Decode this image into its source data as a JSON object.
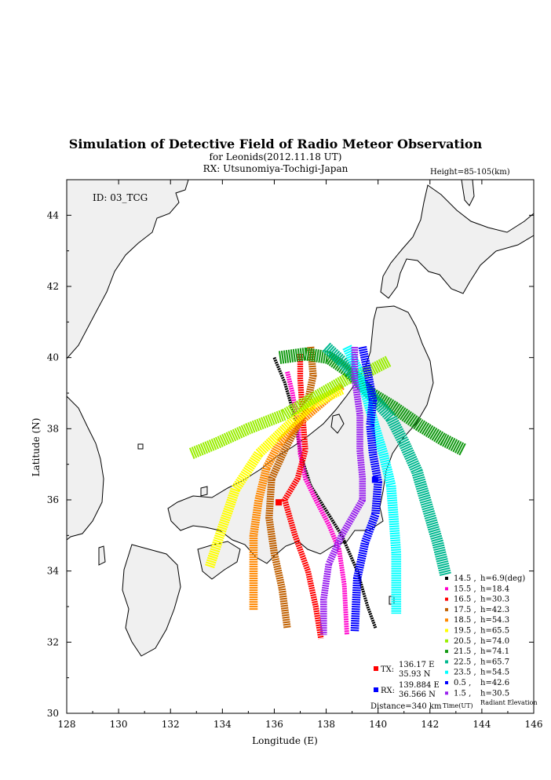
{
  "chart_data": {
    "type": "scatter",
    "title": "Simulation of Detective Field of Radio Meteor Observation",
    "subtitle": "for Leonids(2012.11.18 UT)",
    "rx_line": "RX: Utsunomiya-Tochigi-Japan",
    "height_note": "Height=85-105(km)",
    "id_label": "ID: 03_TCG",
    "xlabel": "Longitude (E)",
    "ylabel": "Latitude (N)",
    "xlim": [
      128,
      146
    ],
    "ylim": [
      30,
      45
    ],
    "xticks": [
      "128",
      "130",
      "132",
      "134",
      "136",
      "138",
      "140",
      "142",
      "144",
      "146"
    ],
    "yticks": [
      "30",
      "32",
      "34",
      "36",
      "38",
      "40",
      "42",
      "44"
    ],
    "legend_header": {
      "time": "Time(UT)",
      "elevation": "Radiant Elevation"
    },
    "series": [
      {
        "time": "14.5",
        "elev": "h=6.9(deg)",
        "color": "#000000",
        "width": 0.12,
        "pts": [
          [
            136.0,
            40.0
          ],
          [
            136.4,
            39.3
          ],
          [
            136.8,
            38.3
          ],
          [
            137.0,
            37.3
          ],
          [
            137.4,
            36.4
          ],
          [
            138.0,
            35.7
          ],
          [
            138.6,
            35.0
          ],
          [
            139.2,
            34.0
          ],
          [
            139.6,
            33.0
          ],
          [
            139.9,
            32.4
          ]
        ]
      },
      {
        "time": "15.5",
        "elev": "h=18.4",
        "color": "#ff00cc",
        "width": 0.18,
        "pts": [
          [
            136.5,
            39.6
          ],
          [
            136.7,
            39.0
          ],
          [
            136.9,
            38.2
          ],
          [
            137.0,
            37.3
          ],
          [
            137.2,
            36.6
          ],
          [
            137.6,
            36.0
          ],
          [
            138.1,
            35.3
          ],
          [
            138.5,
            34.6
          ],
          [
            138.7,
            33.6
          ],
          [
            138.8,
            32.2
          ]
        ]
      },
      {
        "time": "16.5",
        "elev": "h=30.3",
        "color": "#ff0000",
        "width": 0.22,
        "pts": [
          [
            137.0,
            40.1
          ],
          [
            137.0,
            39.4
          ],
          [
            137.1,
            38.3
          ],
          [
            137.2,
            37.4
          ],
          [
            136.9,
            36.6
          ],
          [
            136.4,
            36.0
          ],
          [
            136.8,
            35.0
          ],
          [
            137.3,
            34.0
          ],
          [
            137.6,
            33.0
          ],
          [
            137.8,
            32.1
          ]
        ]
      },
      {
        "time": "17.5",
        "elev": "h=42.3",
        "color": "#c06000",
        "width": 0.28,
        "pts": [
          [
            137.4,
            40.3
          ],
          [
            137.5,
            39.5
          ],
          [
            137.3,
            38.8
          ],
          [
            136.9,
            38.1
          ],
          [
            136.4,
            37.4
          ],
          [
            135.9,
            36.6
          ],
          [
            135.8,
            35.5
          ],
          [
            136.0,
            34.5
          ],
          [
            136.3,
            33.5
          ],
          [
            136.5,
            32.4
          ]
        ]
      },
      {
        "time": "18.5",
        "elev": "h=54.3",
        "color": "#ff8800",
        "width": 0.32,
        "pts": [
          [
            138.6,
            39.2
          ],
          [
            137.8,
            38.7
          ],
          [
            137.0,
            38.2
          ],
          [
            136.2,
            37.6
          ],
          [
            135.7,
            36.9
          ],
          [
            135.4,
            36.0
          ],
          [
            135.2,
            35.0
          ],
          [
            135.2,
            34.0
          ],
          [
            135.2,
            32.9
          ]
        ]
      },
      {
        "time": "19.5",
        "elev": "h=65.5",
        "color": "#ffff00",
        "width": 0.38,
        "pts": [
          [
            138.6,
            39.1
          ],
          [
            137.5,
            38.7
          ],
          [
            136.4,
            38.0
          ],
          [
            135.4,
            37.3
          ],
          [
            134.5,
            36.3
          ],
          [
            133.9,
            35.0
          ],
          [
            133.5,
            34.1
          ]
        ]
      },
      {
        "time": "20.5",
        "elev": "h=74.0",
        "color": "#99ee00",
        "width": 0.45,
        "pts": [
          [
            140.4,
            39.9
          ],
          [
            139.6,
            39.6
          ],
          [
            138.8,
            39.4
          ],
          [
            137.6,
            38.9
          ],
          [
            136.4,
            38.4
          ],
          [
            135.0,
            38.0
          ],
          [
            133.8,
            37.6
          ],
          [
            132.8,
            37.3
          ]
        ]
      },
      {
        "time": "21.5",
        "elev": "h=74.1",
        "color": "#119911",
        "width": 0.5,
        "pts": [
          [
            136.2,
            40.0
          ],
          [
            137.2,
            40.1
          ],
          [
            138.1,
            40.0
          ],
          [
            138.9,
            39.6
          ],
          [
            139.7,
            39.0
          ],
          [
            140.6,
            38.6
          ],
          [
            141.6,
            38.1
          ],
          [
            142.5,
            37.7
          ],
          [
            143.3,
            37.4
          ]
        ]
      },
      {
        "time": "22.5",
        "elev": "h=65.7",
        "color": "#00b890",
        "width": 0.45,
        "pts": [
          [
            138.0,
            40.3
          ],
          [
            138.6,
            39.9
          ],
          [
            139.2,
            39.4
          ],
          [
            139.9,
            38.8
          ],
          [
            140.5,
            38.3
          ],
          [
            141.0,
            37.6
          ],
          [
            141.5,
            36.8
          ],
          [
            141.9,
            35.8
          ],
          [
            142.3,
            34.8
          ],
          [
            142.6,
            33.9
          ]
        ]
      },
      {
        "time": "23.5",
        "elev": "h=54.5",
        "color": "#00ffff",
        "width": 0.38,
        "pts": [
          [
            138.8,
            40.3
          ],
          [
            139.2,
            39.7
          ],
          [
            139.6,
            38.8
          ],
          [
            139.9,
            38.0
          ],
          [
            140.2,
            37.3
          ],
          [
            140.5,
            36.4
          ],
          [
            140.6,
            35.5
          ],
          [
            140.7,
            34.5
          ],
          [
            140.7,
            33.6
          ],
          [
            140.7,
            32.8
          ]
        ]
      },
      {
        "time": "0.5",
        "elev": "h=42.6",
        "color": "#0000ff",
        "width": 0.32,
        "pts": [
          [
            139.4,
            40.3
          ],
          [
            139.6,
            39.6
          ],
          [
            139.8,
            38.8
          ],
          [
            139.7,
            38.1
          ],
          [
            139.8,
            37.3
          ],
          [
            140.0,
            36.5
          ],
          [
            139.9,
            35.6
          ],
          [
            139.5,
            34.8
          ],
          [
            139.2,
            33.8
          ],
          [
            139.1,
            32.3
          ]
        ]
      },
      {
        "time": "1.5",
        "elev": "h=30.5",
        "color": "#9922ee",
        "width": 0.26,
        "pts": [
          [
            139.1,
            40.3
          ],
          [
            139.1,
            39.4
          ],
          [
            139.3,
            38.4
          ],
          [
            139.3,
            37.4
          ],
          [
            139.4,
            36.6
          ],
          [
            139.4,
            36.0
          ],
          [
            138.6,
            35.0
          ],
          [
            138.1,
            34.2
          ],
          [
            137.9,
            33.2
          ],
          [
            137.9,
            32.2
          ]
        ]
      }
    ],
    "tx": {
      "label": "TX:",
      "lon_text": "136.17 E",
      "lat_text": "35.93 N",
      "lon": 136.17,
      "lat": 35.93,
      "color": "#ff0000"
    },
    "rx": {
      "label": "RX:",
      "lon_text": "139.884 E",
      "lat_text": "36.566 N",
      "lon": 139.884,
      "lat": 36.566,
      "color": "#0000ff"
    },
    "distance": "Distance=340 km"
  }
}
